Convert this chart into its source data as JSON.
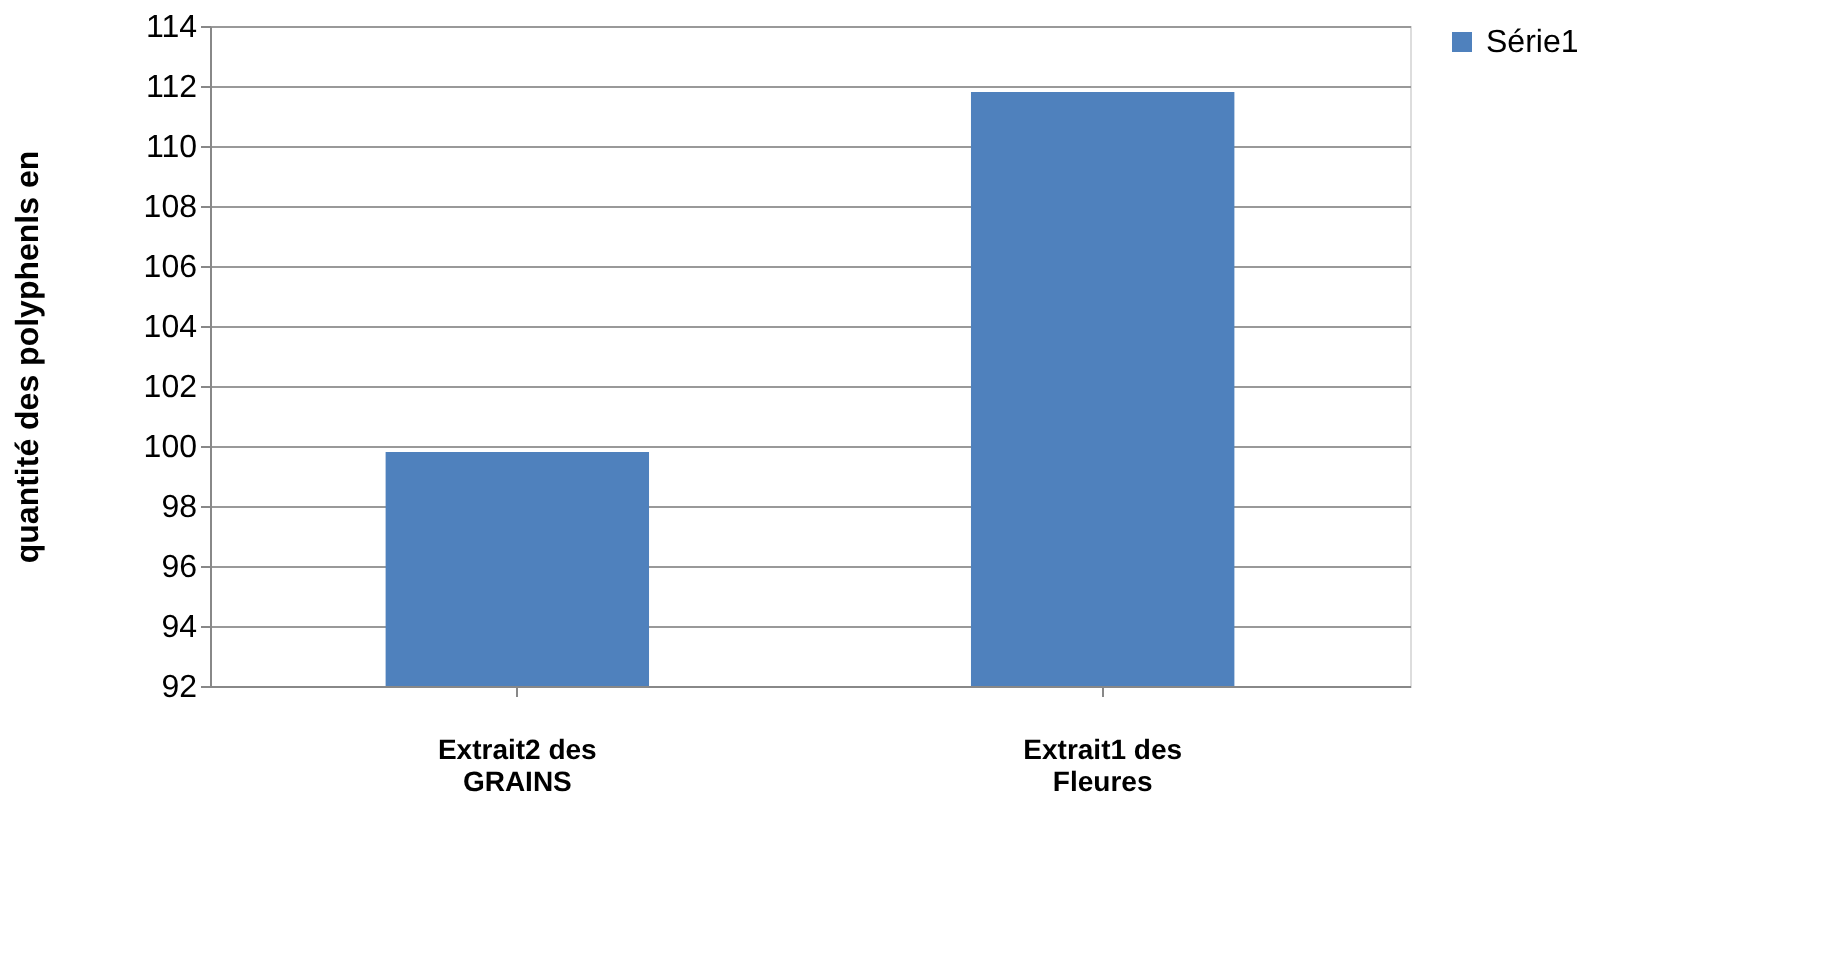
{
  "chart_data": {
    "type": "bar",
    "ylabel": "quantité des polyphenls en",
    "categories": [
      "Extrait2 des GRAINS",
      "Extrait1 des Fleures"
    ],
    "series": [
      {
        "name": "Série1",
        "color": "#4f81bd",
        "values": [
          99.8,
          111.8
        ]
      }
    ],
    "ylim": [
      92,
      114
    ],
    "yticks": [
      92,
      94,
      96,
      98,
      100,
      102,
      104,
      106,
      108,
      110,
      112,
      114
    ],
    "grid": "y",
    "legend": "right"
  }
}
